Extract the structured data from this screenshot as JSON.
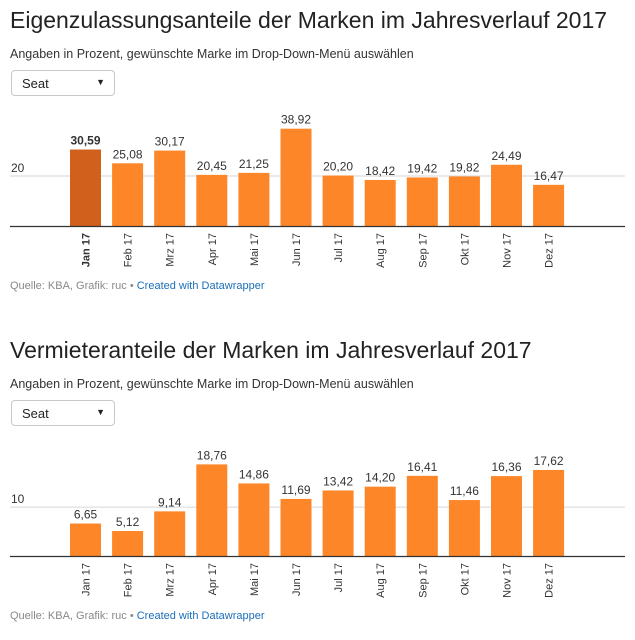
{
  "charts": [
    {
      "title": "Eigenzulassungsanteile der Marken im Jahresverlauf 2017",
      "subtitle": "Angaben in Prozent, gewünschte Marke im Drop-Down-Menü auswählen",
      "dropdown": {
        "selected": "Seat",
        "caret": "▼"
      },
      "source": {
        "text": "Quelle: KBA, Grafik: ruc • ",
        "link": "Created with Datawrapper"
      }
    },
    {
      "title": "Vermieteranteile der Marken im Jahresverlauf 2017",
      "subtitle": "Angaben in Prozent, gewünschte Marke im Drop-Down-Menü auswählen",
      "dropdown": {
        "selected": "Seat",
        "caret": "▼"
      },
      "source": {
        "text": "Quelle: KBA, Grafik: ruc • ",
        "link": "Created with Datawrapper"
      }
    }
  ],
  "chart_data": [
    {
      "type": "bar",
      "categories": [
        "Jan 17",
        "Feb 17",
        "Mrz 17",
        "Apr 17",
        "Mai 17",
        "Jun 17",
        "Jul 17",
        "Aug 17",
        "Sep 17",
        "Okt 17",
        "Nov 17",
        "Dez 17"
      ],
      "values": [
        30.59,
        25.08,
        30.17,
        20.45,
        21.25,
        38.92,
        20.2,
        18.42,
        19.42,
        19.82,
        24.49,
        16.47
      ],
      "value_labels": [
        "30,59",
        "25,08",
        "30,17",
        "20,45",
        "21,25",
        "38,92",
        "20,20",
        "18,42",
        "19,42",
        "19,82",
        "24,49",
        "16,47"
      ],
      "highlight_index": 0,
      "yticks": [
        {
          "value": 20,
          "label": "20"
        }
      ],
      "ylim": [
        0,
        42
      ],
      "colors": {
        "bar": "#fd8628",
        "highlight": "#d0601c"
      }
    },
    {
      "type": "bar",
      "categories": [
        "Jan 17",
        "Feb 17",
        "Mrz 17",
        "Apr 17",
        "Mai 17",
        "Jun 17",
        "Jul 17",
        "Aug 17",
        "Sep 17",
        "Okt 17",
        "Nov 17",
        "Dez 17"
      ],
      "values": [
        6.65,
        5.12,
        9.14,
        18.76,
        14.86,
        11.69,
        13.42,
        14.2,
        16.41,
        11.46,
        16.36,
        17.62
      ],
      "value_labels": [
        "6,65",
        "5,12",
        "9,14",
        "18,76",
        "14,86",
        "11,69",
        "13,42",
        "14,20",
        "16,41",
        "11,46",
        "16,36",
        "17,62"
      ],
      "highlight_index": null,
      "yticks": [
        {
          "value": 10,
          "label": "10"
        }
      ],
      "ylim": [
        0,
        21.5
      ],
      "colors": {
        "bar": "#fd8628",
        "highlight": "#d0601c"
      }
    }
  ]
}
